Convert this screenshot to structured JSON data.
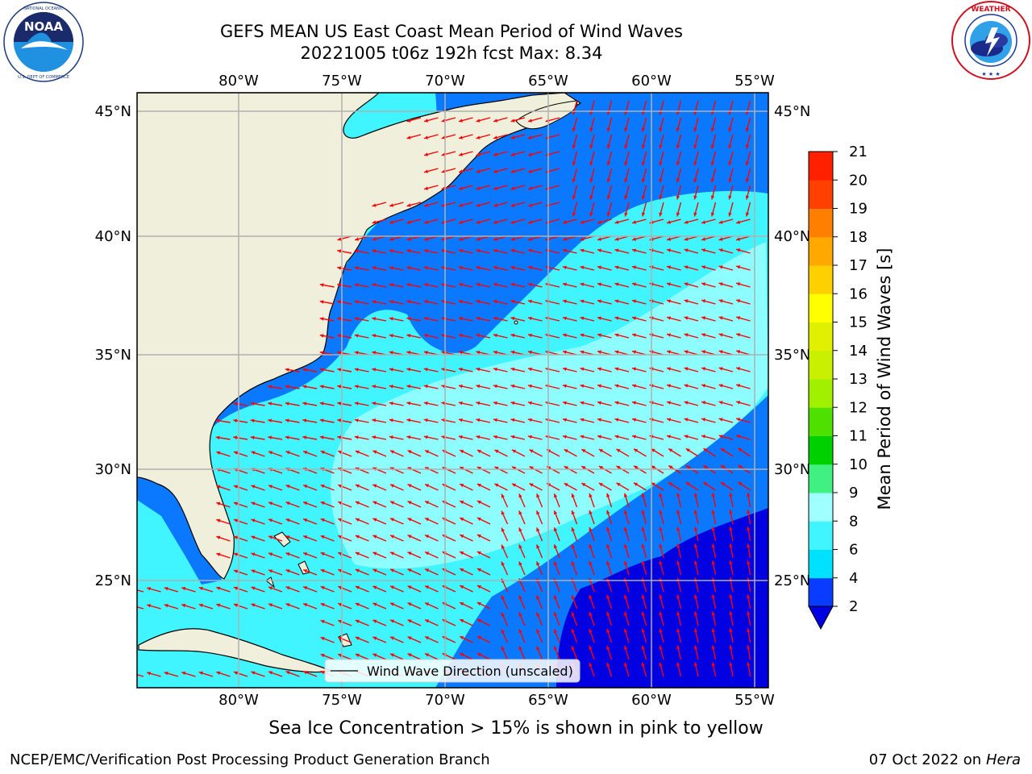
{
  "title_line1": "GEFS MEAN US East Coast Mean Period of Wind Waves",
  "title_line2": "20221005 t06z 192h fcst   Max: 8.34",
  "subtitle": "Sea Ice Concentration > 15% is shown in pink to yellow",
  "footer_left": "NCEP/EMC/Verification Post Processing Product Generation Branch",
  "footer_date": "07 Oct 2022 on ",
  "footer_machine": "Hera",
  "legend_label": "Wind Wave Direction (unscaled)",
  "colorbar": {
    "label": "Mean Period of Wind Waves [s]",
    "ticks": [
      "2",
      "4",
      "6",
      "8",
      "9",
      "10",
      "11",
      "12",
      "13",
      "14",
      "15",
      "16",
      "17",
      "18",
      "19",
      "20",
      "21"
    ],
    "colors": [
      "#0a3cff",
      "#00e0ff",
      "#40f5ff",
      "#a0ffff",
      "#40f080",
      "#00d000",
      "#50e000",
      "#a0f000",
      "#c8f000",
      "#e0f000",
      "#ffff00",
      "#ffd000",
      "#ffa800",
      "#ff8000",
      "#ff4000",
      "#ff2000",
      "#ff0000"
    ],
    "extend_color": "#0000e0"
  },
  "lon_labels": [
    "80°W",
    "75°W",
    "70°W",
    "65°W",
    "60°W",
    "55°W"
  ],
  "lat_labels": [
    "45°N",
    "40°N",
    "35°N",
    "30°N",
    "25°N"
  ],
  "colors": {
    "land": "#efefdc",
    "level_2_4": "#0a78ff",
    "level_4_6": "#00ffff",
    "level_6_8": "#80ffff",
    "level_8_9": "#b4ffff",
    "lowest": "#0000e0",
    "arrow": "#ff0000"
  },
  "logos": {
    "left": {
      "name": "NOAA",
      "ring_text": "NATIONAL OCEANIC AND ATMOSPHERIC ADMINISTRATION · U.S. DEPARTMENT OF COMMERCE"
    },
    "right": {
      "name": "NATIONAL WEATHER SERVICE"
    }
  }
}
